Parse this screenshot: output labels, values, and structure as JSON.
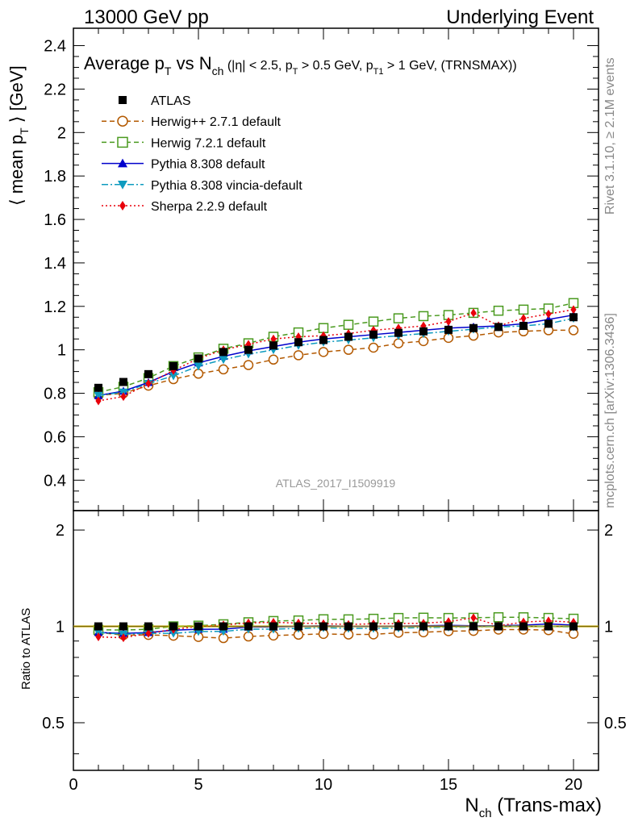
{
  "header": {
    "left": "13000 GeV pp",
    "right": "Underlying Event"
  },
  "title": {
    "main": "Average p",
    "main_sub": "T",
    "vs": " vs N",
    "vs_sub": "ch",
    "cut_open": " (|η| < 2.5, p",
    "cut_sub1": "T",
    "cut_mid": " > 0.5 GeV, p",
    "cut_sub2": "T1",
    "cut_close": " > 1 GeV, (TRNSMAX))"
  },
  "side_labels": {
    "rivet": "Rivet 3.1.10, ≥ 2.1M events",
    "mcplots": "mcplots.cern.ch [arXiv:1306.3436]"
  },
  "watermark": "ATLAS_2017_I1509919",
  "ylabel_main": {
    "open": "⟨ mean p",
    "sub": "T",
    "close": " ⟩ [GeV]"
  },
  "ylabel_ratio": "Ratio to ATLAS",
  "xlabel": {
    "base": "N",
    "sub": "ch",
    "rest": " (Trans-max)"
  },
  "chart_data": {
    "type": "line",
    "x": [
      1,
      2,
      3,
      4,
      5,
      6,
      7,
      8,
      9,
      10,
      11,
      12,
      13,
      14,
      15,
      16,
      17,
      18,
      19,
      20
    ],
    "xlim": [
      0,
      21
    ],
    "ylim_main": [
      0.26,
      2.48
    ],
    "yticks_main": [
      0.4,
      0.6,
      0.8,
      1,
      1.2,
      1.4,
      1.6,
      1.8,
      2,
      2.2,
      2.4
    ],
    "yticks_main_labels": [
      "0.4",
      "0.6",
      "0.8",
      "1",
      "1.2",
      "1.4",
      "1.6",
      "1.8",
      "2",
      "2.2",
      "2.4"
    ],
    "ylim_ratio": [
      0.355,
      2.3
    ],
    "yticks_ratio": [
      0.5,
      1,
      2
    ],
    "yticks_ratio_labels": [
      "0.5",
      "1",
      "2"
    ],
    "ratio_log_scale": true,
    "xticks": [
      0,
      5,
      10,
      15,
      20
    ],
    "xticks_labels": [
      "0",
      "5",
      "10",
      "15",
      "20"
    ],
    "legend_position": "top-left",
    "series": [
      {
        "name": "ATLAS",
        "color": "#000000",
        "marker": "square-filled",
        "line": "none",
        "values": [
          0.825,
          0.852,
          0.888,
          0.925,
          0.96,
          0.99,
          1.0,
          1.02,
          1.035,
          1.045,
          1.06,
          1.07,
          1.078,
          1.085,
          1.092,
          1.1,
          1.105,
          1.11,
          1.12,
          1.15
        ]
      },
      {
        "name": "Herwig++ 2.7.1 default",
        "color": "#b35900",
        "marker": "circle-open",
        "line": "dashed",
        "values": [
          0.79,
          0.8,
          0.835,
          0.865,
          0.89,
          0.91,
          0.93,
          0.955,
          0.975,
          0.99,
          1.0,
          1.01,
          1.03,
          1.04,
          1.055,
          1.065,
          1.08,
          1.085,
          1.09,
          1.09
        ]
      },
      {
        "name": "Herwig 7.2.1 default",
        "color": "#4a9a1f",
        "marker": "square-open",
        "line": "dashed",
        "values": [
          0.805,
          0.83,
          0.87,
          0.925,
          0.965,
          1.005,
          1.03,
          1.06,
          1.08,
          1.1,
          1.115,
          1.13,
          1.145,
          1.155,
          1.16,
          1.17,
          1.18,
          1.185,
          1.19,
          1.215
        ]
      },
      {
        "name": "Pythia 8.308 default",
        "color": "#0000cc",
        "marker": "triangle-up-filled",
        "line": "solid",
        "values": [
          0.79,
          0.81,
          0.85,
          0.9,
          0.94,
          0.97,
          0.995,
          1.015,
          1.035,
          1.05,
          1.06,
          1.07,
          1.08,
          1.09,
          1.1,
          1.105,
          1.11,
          1.12,
          1.14,
          1.16
        ]
      },
      {
        "name": "Pythia 8.308 vincia-default",
        "color": "#0e9bbf",
        "marker": "triangle-down-filled",
        "line": "dashdot",
        "values": [
          0.79,
          0.805,
          0.845,
          0.88,
          0.925,
          0.955,
          0.98,
          1.0,
          1.02,
          1.035,
          1.045,
          1.055,
          1.065,
          1.075,
          1.085,
          1.095,
          1.105,
          1.11,
          1.12,
          1.145
        ]
      },
      {
        "name": "Sherpa 2.2.9 default",
        "color": "#e8000b",
        "marker": "diamond-filled",
        "line": "dotted",
        "values": [
          0.765,
          0.785,
          0.845,
          0.905,
          0.96,
          1.0,
          1.025,
          1.05,
          1.06,
          1.065,
          1.075,
          1.09,
          1.1,
          1.11,
          1.13,
          1.17,
          1.11,
          1.145,
          1.165,
          1.185
        ]
      }
    ]
  }
}
